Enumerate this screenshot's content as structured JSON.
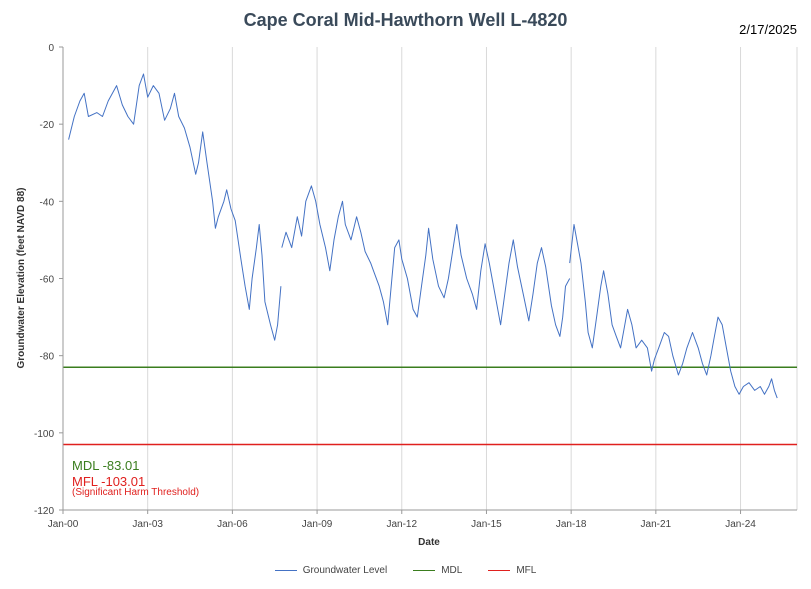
{
  "title": "Cape Coral Mid-Hawthorn Well L-4820",
  "date_stamp": "2/17/2025",
  "annotations": {
    "mdl": "MDL -83.01",
    "mfl": "MFL -103.01",
    "mfl_note": "(Significant Harm Threshold)"
  },
  "chart_data": {
    "type": "line",
    "xlabel": "Date",
    "ylabel": "Groundwater Elevation (feet NAVD 88)",
    "xlim": [
      2000.0,
      2026.0
    ],
    "ylim": [
      -120,
      0
    ],
    "x_ticks": [
      "Jan-00",
      "Jan-03",
      "Jan-06",
      "Jan-09",
      "Jan-12",
      "Jan-15",
      "Jan-18",
      "Jan-21",
      "Jan-24"
    ],
    "y_ticks": [
      0,
      -20,
      -40,
      -60,
      -80,
      -100,
      -120
    ],
    "grid": "vertical",
    "legend_position": "bottom",
    "colors": {
      "series": "#4472c4",
      "mdl": "#3a7d1e",
      "mfl": "#e0201e",
      "grid": "#d9d9d9"
    },
    "series": [
      {
        "name": "Groundwater Level",
        "segments": [
          [
            [
              2000.2,
              -24
            ],
            [
              2000.4,
              -18
            ],
            [
              2000.6,
              -14
            ],
            [
              2000.75,
              -12
            ],
            [
              2000.9,
              -18
            ],
            [
              2001.2,
              -17
            ],
            [
              2001.4,
              -18
            ],
            [
              2001.6,
              -14
            ],
            [
              2001.9,
              -10
            ],
            [
              2002.1,
              -15
            ],
            [
              2002.3,
              -18
            ],
            [
              2002.5,
              -20
            ],
            [
              2002.7,
              -10
            ],
            [
              2002.85,
              -7
            ],
            [
              2003.0,
              -13
            ],
            [
              2003.2,
              -10
            ],
            [
              2003.4,
              -12
            ],
            [
              2003.6,
              -19
            ],
            [
              2003.8,
              -16
            ],
            [
              2003.95,
              -12
            ],
            [
              2004.1,
              -18
            ],
            [
              2004.3,
              -21
            ],
            [
              2004.5,
              -26
            ],
            [
              2004.7,
              -33
            ],
            [
              2004.8,
              -30
            ],
            [
              2004.95,
              -22
            ],
            [
              2005.1,
              -30
            ],
            [
              2005.3,
              -40
            ],
            [
              2005.4,
              -47
            ],
            [
              2005.5,
              -44
            ],
            [
              2005.7,
              -40
            ],
            [
              2005.8,
              -37
            ],
            [
              2005.95,
              -42
            ],
            [
              2006.1,
              -45
            ],
            [
              2006.3,
              -55
            ],
            [
              2006.45,
              -62
            ],
            [
              2006.6,
              -68
            ],
            [
              2006.7,
              -60
            ],
            [
              2006.85,
              -52
            ],
            [
              2006.95,
              -46
            ],
            [
              2007.05,
              -54
            ],
            [
              2007.15,
              -66
            ],
            [
              2007.35,
              -72
            ],
            [
              2007.5,
              -76
            ],
            [
              2007.6,
              -72
            ],
            [
              2007.72,
              -62
            ]
          ],
          [
            [
              2007.75,
              -52
            ],
            [
              2007.9,
              -48
            ],
            [
              2008.1,
              -52
            ],
            [
              2008.3,
              -44
            ],
            [
              2008.45,
              -49
            ],
            [
              2008.6,
              -40
            ],
            [
              2008.8,
              -36
            ],
            [
              2008.95,
              -40
            ],
            [
              2009.1,
              -46
            ],
            [
              2009.3,
              -52
            ],
            [
              2009.45,
              -58
            ],
            [
              2009.6,
              -50
            ],
            [
              2009.75,
              -44
            ],
            [
              2009.9,
              -40
            ],
            [
              2010.0,
              -46
            ],
            [
              2010.2,
              -50
            ],
            [
              2010.4,
              -44
            ],
            [
              2010.55,
              -48
            ],
            [
              2010.7,
              -53
            ],
            [
              2010.9,
              -56
            ],
            [
              2011.0,
              -58
            ],
            [
              2011.2,
              -62
            ],
            [
              2011.35,
              -66
            ],
            [
              2011.5,
              -72
            ],
            [
              2011.6,
              -64
            ],
            [
              2011.75,
              -52
            ],
            [
              2011.9,
              -50
            ],
            [
              2012.0,
              -55
            ],
            [
              2012.2,
              -60
            ],
            [
              2012.4,
              -68
            ],
            [
              2012.55,
              -70
            ],
            [
              2012.7,
              -62
            ],
            [
              2012.85,
              -54
            ],
            [
              2012.95,
              -47
            ],
            [
              2013.1,
              -55
            ],
            [
              2013.3,
              -62
            ],
            [
              2013.5,
              -65
            ],
            [
              2013.65,
              -60
            ],
            [
              2013.8,
              -53
            ],
            [
              2013.95,
              -46
            ],
            [
              2014.1,
              -54
            ],
            [
              2014.3,
              -60
            ],
            [
              2014.5,
              -64
            ],
            [
              2014.65,
              -68
            ],
            [
              2014.8,
              -58
            ],
            [
              2014.95,
              -51
            ],
            [
              2015.1,
              -56
            ],
            [
              2015.3,
              -64
            ],
            [
              2015.5,
              -72
            ],
            [
              2015.65,
              -64
            ],
            [
              2015.8,
              -56
            ],
            [
              2015.95,
              -50
            ],
            [
              2016.1,
              -57
            ],
            [
              2016.3,
              -64
            ],
            [
              2016.5,
              -71
            ],
            [
              2016.65,
              -64
            ],
            [
              2016.8,
              -56
            ],
            [
              2016.95,
              -52
            ],
            [
              2017.1,
              -57
            ],
            [
              2017.3,
              -67
            ],
            [
              2017.45,
              -72
            ],
            [
              2017.6,
              -75
            ],
            [
              2017.7,
              -70
            ],
            [
              2017.8,
              -62
            ],
            [
              2017.95,
              -60
            ]
          ],
          [
            [
              2017.95,
              -56
            ],
            [
              2018.1,
              -46
            ],
            [
              2018.2,
              -50
            ],
            [
              2018.35,
              -56
            ],
            [
              2018.5,
              -66
            ],
            [
              2018.6,
              -74
            ],
            [
              2018.75,
              -78
            ],
            [
              2018.9,
              -70
            ],
            [
              2019.05,
              -62
            ],
            [
              2019.15,
              -58
            ],
            [
              2019.3,
              -64
            ],
            [
              2019.45,
              -72
            ],
            [
              2019.6,
              -75
            ],
            [
              2019.75,
              -78
            ],
            [
              2019.9,
              -72
            ],
            [
              2020.0,
              -68
            ],
            [
              2020.15,
              -72
            ],
            [
              2020.3,
              -78
            ],
            [
              2020.5,
              -76
            ],
            [
              2020.7,
              -78
            ],
            [
              2020.85,
              -84
            ],
            [
              2020.95,
              -81
            ],
            [
              2021.1,
              -78
            ],
            [
              2021.3,
              -74
            ],
            [
              2021.45,
              -75
            ],
            [
              2021.6,
              -80
            ],
            [
              2021.8,
              -85
            ],
            [
              2021.95,
              -82
            ],
            [
              2022.1,
              -78
            ],
            [
              2022.3,
              -74
            ],
            [
              2022.5,
              -78
            ],
            [
              2022.65,
              -82
            ],
            [
              2022.8,
              -85
            ],
            [
              2022.95,
              -80
            ],
            [
              2023.05,
              -76
            ],
            [
              2023.2,
              -70
            ],
            [
              2023.35,
              -72
            ],
            [
              2023.5,
              -78
            ],
            [
              2023.65,
              -84
            ],
            [
              2023.8,
              -88
            ],
            [
              2023.95,
              -90
            ],
            [
              2024.1,
              -88
            ],
            [
              2024.3,
              -87
            ],
            [
              2024.5,
              -89
            ],
            [
              2024.7,
              -88
            ],
            [
              2024.85,
              -90
            ],
            [
              2025.0,
              -88
            ],
            [
              2025.1,
              -86
            ],
            [
              2025.2,
              -89
            ],
            [
              2025.3,
              -91
            ]
          ]
        ]
      },
      {
        "name": "MDL",
        "value": -83.01
      },
      {
        "name": "MFL",
        "value": -103.01
      }
    ]
  }
}
